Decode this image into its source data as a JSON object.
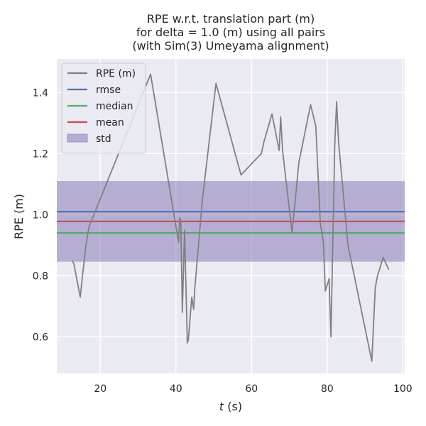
{
  "chart_data": {
    "type": "line",
    "title": [
      "RPE w.r.t. translation part (m)",
      "for delta = 1.0 (m) using all pairs",
      "(with Sim(3) Umeyama alignment)"
    ],
    "xlabel_italic": "t",
    "xlabel_rest": " (s)",
    "ylabel": "RPE (m)",
    "xlim": [
      8.5,
      100.5
    ],
    "ylim": [
      0.48,
      1.51
    ],
    "xticks": [
      20,
      40,
      60,
      80,
      100
    ],
    "yticks": [
      0.6,
      0.8,
      1.0,
      1.2,
      1.4
    ],
    "ytick_labels": [
      "0.6",
      "0.8",
      "1.0",
      "1.2",
      "1.4"
    ],
    "grid": true,
    "legend_position": "top-left",
    "series": [
      {
        "name": "RPE (m)",
        "color": "#808080",
        "x": [
          12.5,
          13.0,
          14.7,
          15.3,
          16.2,
          17.0,
          33.3,
          40.7,
          41.0,
          41.3,
          41.7,
          42.3,
          43.0,
          43.3,
          43.8,
          44.2,
          44.7,
          45.0,
          47.0,
          50.6,
          57.2,
          62.6,
          63.3,
          65.4,
          67.3,
          67.7,
          68.2,
          70.7,
          72.5,
          75.6,
          77.0,
          78.2,
          79.0,
          79.5,
          80.5,
          81.0,
          82.0,
          82.5,
          83.0,
          85.5,
          91.8,
          92.7,
          93.3,
          94.8,
          96.3
        ],
        "y": [
          0.85,
          0.84,
          0.73,
          0.8,
          0.9,
          0.96,
          1.46,
          0.91,
          0.99,
          0.98,
          0.68,
          0.95,
          0.58,
          0.59,
          0.67,
          0.73,
          0.69,
          0.76,
          1.05,
          1.43,
          1.13,
          1.2,
          1.24,
          1.33,
          1.21,
          1.32,
          1.21,
          0.94,
          1.17,
          1.36,
          1.29,
          0.97,
          0.91,
          0.75,
          0.79,
          0.6,
          1.23,
          1.37,
          1.24,
          0.9,
          0.52,
          0.76,
          0.8,
          0.86,
          0.82
        ]
      }
    ],
    "stats": [
      {
        "name": "rmse",
        "value": 1.01,
        "color": "#4c72b0"
      },
      {
        "name": "median",
        "value": 0.94,
        "color": "#55a868"
      },
      {
        "name": "mean",
        "value": 0.978,
        "color": "#c44e52"
      }
    ],
    "std_band": {
      "name": "std",
      "low": 0.846,
      "high": 1.11,
      "color": "#8172b2"
    }
  }
}
